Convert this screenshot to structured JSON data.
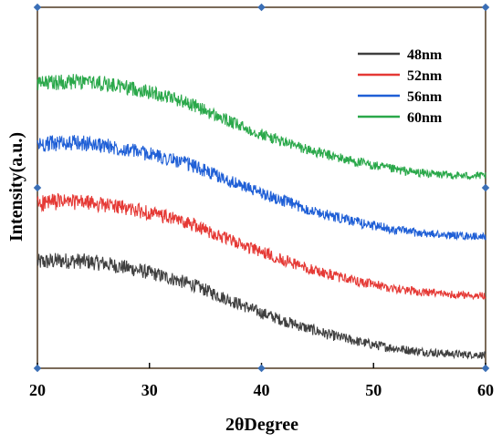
{
  "chart_data": {
    "type": "line",
    "title": "",
    "xlabel": "2θDegree",
    "ylabel": "Intensity(a.u.)",
    "xlim": [
      20,
      60
    ],
    "x_ticks": [
      "20",
      "30",
      "40",
      "50",
      "60"
    ],
    "y_ticks_labeled": false,
    "grid": false,
    "legend_position": "top-right",
    "series": [
      {
        "name": "48nm",
        "color": "#3f3f3f",
        "x": [
          20,
          22,
          24,
          26,
          28,
          30,
          32,
          34,
          36,
          38,
          40,
          42,
          44,
          46,
          48,
          50,
          52,
          54,
          56,
          58,
          60
        ],
        "y": [
          1.76,
          1.79,
          1.78,
          1.74,
          1.67,
          1.59,
          1.49,
          1.38,
          1.22,
          1.07,
          0.92,
          0.79,
          0.67,
          0.56,
          0.47,
          0.39,
          0.33,
          0.28,
          0.25,
          0.23,
          0.22
        ]
      },
      {
        "name": "52nm",
        "color": "#e53935",
        "x": [
          20,
          22,
          24,
          26,
          28,
          30,
          32,
          34,
          36,
          38,
          40,
          42,
          44,
          46,
          48,
          50,
          52,
          54,
          56,
          58,
          60
        ],
        "y": [
          2.74,
          2.77,
          2.76,
          2.72,
          2.66,
          2.58,
          2.49,
          2.38,
          2.22,
          2.07,
          1.93,
          1.8,
          1.67,
          1.56,
          1.47,
          1.39,
          1.32,
          1.27,
          1.24,
          1.22,
          1.21
        ]
      },
      {
        "name": "56nm",
        "color": "#1f5fd6",
        "x": [
          20,
          22,
          24,
          26,
          28,
          30,
          32,
          34,
          36,
          38,
          40,
          42,
          44,
          46,
          48,
          50,
          52,
          54,
          56,
          58,
          60
        ],
        "y": [
          3.72,
          3.75,
          3.74,
          3.7,
          3.64,
          3.56,
          3.47,
          3.36,
          3.2,
          3.05,
          2.91,
          2.78,
          2.65,
          2.54,
          2.45,
          2.37,
          2.3,
          2.25,
          2.22,
          2.2,
          2.19
        ]
      },
      {
        "name": "60nm",
        "color": "#2aa84a",
        "x": [
          20,
          22,
          24,
          26,
          28,
          30,
          32,
          34,
          36,
          38,
          40,
          42,
          44,
          46,
          48,
          50,
          52,
          54,
          56,
          58,
          60
        ],
        "y": [
          4.72,
          4.76,
          4.76,
          4.73,
          4.67,
          4.59,
          4.5,
          4.37,
          4.19,
          4.03,
          3.89,
          3.76,
          3.64,
          3.54,
          3.45,
          3.37,
          3.3,
          3.25,
          3.22,
          3.2,
          3.2
        ]
      }
    ]
  }
}
